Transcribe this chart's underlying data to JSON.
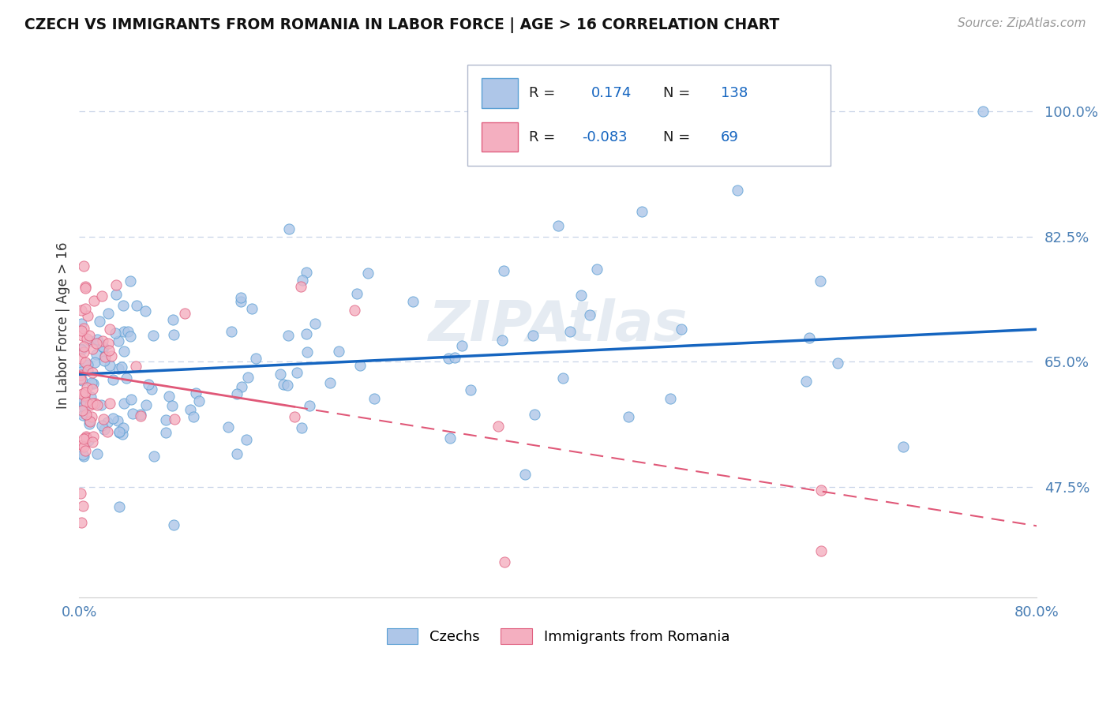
{
  "title": "CZECH VS IMMIGRANTS FROM ROMANIA IN LABOR FORCE | AGE > 16 CORRELATION CHART",
  "source": "Source: ZipAtlas.com",
  "ylabel": "In Labor Force | Age > 16",
  "xlim": [
    0.0,
    0.8
  ],
  "ylim": [
    0.32,
    1.08
  ],
  "xtick_labels": [
    "0.0%",
    "80.0%"
  ],
  "xtick_vals": [
    0.0,
    0.8
  ],
  "ytick_labels": [
    "47.5%",
    "65.0%",
    "82.5%",
    "100.0%"
  ],
  "ytick_vals": [
    0.475,
    0.65,
    0.825,
    1.0
  ],
  "R_czech": 0.174,
  "N_czech": 138,
  "R_romania": -0.083,
  "N_romania": 69,
  "czech_color": "#aec6e8",
  "romania_color": "#f4afc0",
  "czech_edge_color": "#5a9fd4",
  "romania_edge_color": "#e06080",
  "czech_line_color": "#1565c0",
  "romania_line_color": "#e05878",
  "background_color": "#ffffff",
  "grid_color": "#c8d4e8",
  "title_color": "#111111",
  "legend_R_color": "#1565c0",
  "legend_N_color": "#1565c0",
  "watermark_color": "#d0dce8",
  "tick_color": "#4a7fb5",
  "ylabel_color": "#333333",
  "source_color": "#999999",
  "czech_line_start_y": 0.632,
  "czech_line_end_y": 0.695,
  "romania_line_start_y": 0.635,
  "romania_line_end_y": 0.42,
  "figsize": [
    14.06,
    8.92
  ],
  "dpi": 100
}
